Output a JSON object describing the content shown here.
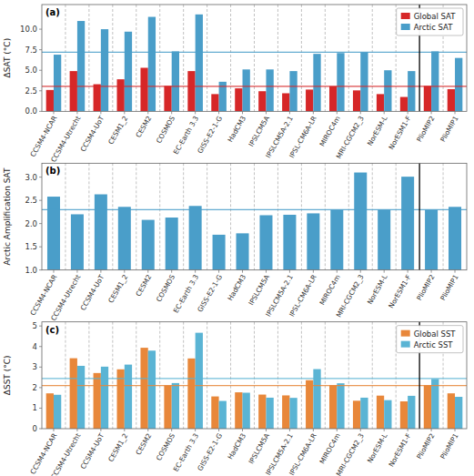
{
  "chart_data": [
    {
      "type": "bar",
      "categories": [
        "CCSM4-NCAR",
        "CCSM4-Utrecht",
        "CCSM4-UoT",
        "CESM1_2",
        "CESM2",
        "COSMOS",
        "EC-Earth 3.3",
        "GISS-E2-1-G",
        "HadCM3",
        "IPSLCM5A",
        "IPSLCM5A-2.1",
        "IPSL-CM6A-LR",
        "MIROC4m",
        "MRI-CGCM2_3",
        "NorESM-L",
        "NorESM1-F",
        "PlioMIP2",
        "PlioMIP1"
      ],
      "series": [
        {
          "name": "Global SAT",
          "color": "#d62728",
          "values": [
            2.6,
            4.9,
            3.3,
            3.9,
            5.3,
            3.1,
            4.9,
            2.1,
            2.8,
            2.45,
            2.2,
            2.65,
            3.05,
            2.55,
            2.1,
            1.75,
            3.1,
            2.7
          ],
          "reference_line": 3.05
        },
        {
          "name": "Arctic SAT",
          "color": "#4a9ec9",
          "values": [
            6.9,
            11.0,
            10.0,
            9.7,
            11.5,
            7.3,
            11.8,
            3.6,
            5.1,
            5.1,
            4.9,
            7.0,
            7.1,
            7.2,
            5.0,
            4.9,
            7.3,
            6.5
          ],
          "reference_line": 7.2
        }
      ],
      "y_label": "ΔSAT (°C)",
      "annotations": [
        "(a)"
      ],
      "ylim": [
        0,
        13
      ],
      "yticks": [
        {
          "value": 0,
          "label": "0.0"
        },
        2.5,
        {
          "value": 5,
          "label": "5.0"
        },
        7.5,
        {
          "value": 10,
          "label": "10.0"
        }
      ],
      "grid": false,
      "legend": "upper right",
      "divider_index": 16
    },
    {
      "type": "bar",
      "categories": [
        "CCSM4-NCAR",
        "CCSM4-Utrecht",
        "CCSM4-UoT",
        "CESM1_2",
        "CESM2",
        "COSMOS",
        "EC-Earth 3.3",
        "GISS-E2-1-G",
        "HadCM3",
        "IPSLCM5A",
        "IPSLCM5A-2.1",
        "IPSL-CM6A-LR",
        "MIROC4m",
        "MRI-CGCM2_3",
        "NorESM-L",
        "NorESM1-F",
        "PlioMIP2",
        "PlioMIP1"
      ],
      "values": [
        2.58,
        2.2,
        2.63,
        2.36,
        2.08,
        2.13,
        2.38,
        1.76,
        1.79,
        2.18,
        2.19,
        2.22,
        2.3,
        3.1,
        2.3,
        3.01,
        2.3,
        2.36
      ],
      "color": "#4a9ec9",
      "reference_line": 2.3,
      "y_label": "Arctic Amplification SAT",
      "annotations": [
        "(b)"
      ],
      "ylim": [
        1.0,
        3.3
      ],
      "yticks": [
        {
          "value": 1,
          "label": "1.0"
        },
        1.5,
        {
          "value": 2,
          "label": "2.0"
        },
        2.5,
        {
          "value": 3,
          "label": "3.0"
        }
      ],
      "grid": false,
      "divider_index": 16
    },
    {
      "type": "bar",
      "categories": [
        "CCSM4-NCAR",
        "CCSM4-Utrecht",
        "CCSM4-UoT",
        "CESM1_2",
        "CESM2",
        "COSMOS",
        "EC-Earth 3.3",
        "GISS-E2-1-G",
        "HadCM3",
        "IPSLCM5A",
        "IPSLCM5A-2.1",
        "IPSL-CM6A-LR",
        "MIROC4m",
        "MRI-CGCM2_3",
        "NorESM-L",
        "NorESM1-F",
        "PlioMIP2",
        "PlioMIP1"
      ],
      "series": [
        {
          "name": "Global SST",
          "color": "#e8873a",
          "values": [
            1.72,
            3.43,
            2.71,
            2.89,
            3.94,
            2.11,
            3.42,
            1.57,
            1.77,
            1.66,
            1.62,
            2.36,
            2.12,
            1.36,
            1.61,
            1.33,
            2.12,
            1.72
          ],
          "reference_line": 2.1
        },
        {
          "name": "Arctic SST",
          "color": "#5ab4d4",
          "values": [
            1.65,
            3.06,
            3.02,
            3.12,
            3.8,
            2.22,
            4.67,
            1.35,
            1.75,
            1.51,
            1.5,
            2.9,
            2.21,
            1.51,
            1.39,
            1.6,
            2.42,
            1.55
          ],
          "reference_line": 2.44
        }
      ],
      "y_label": "ΔSST (°C)",
      "annotations": [
        "(c)"
      ],
      "ylim": [
        0,
        5.2
      ],
      "yticks": [
        0,
        1,
        2,
        3,
        4,
        5
      ],
      "grid": false,
      "legend": "upper right",
      "divider_index": 16
    }
  ]
}
